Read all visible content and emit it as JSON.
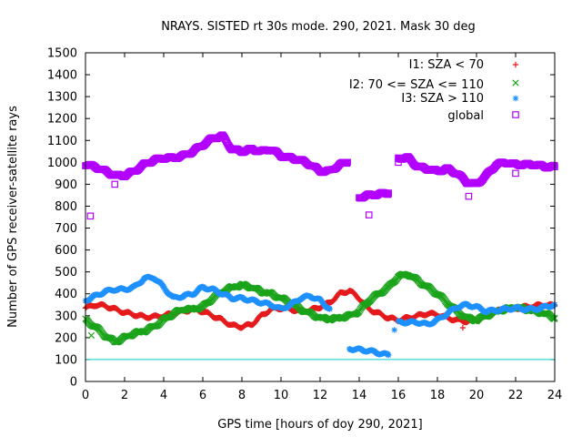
{
  "chart_data": {
    "type": "scatter",
    "title": "NRAYS. SISTED rt 30s mode. 290, 2021. Mask 30 deg",
    "xlabel": "GPS time [hours of doy 290, 2021]",
    "ylabel": "Number of GPS receiver-satellite rays",
    "xlim": [
      0,
      24
    ],
    "ylim": [
      0,
      1500
    ],
    "xticks": [
      0,
      2,
      4,
      6,
      8,
      10,
      12,
      14,
      16,
      18,
      20,
      22,
      24
    ],
    "yticks": [
      0,
      100,
      200,
      300,
      400,
      500,
      600,
      700,
      800,
      900,
      1000,
      1100,
      1200,
      1300,
      1400,
      1500
    ],
    "legend_position": "top-right",
    "reference_line": {
      "y": 100,
      "color": "#00ced1"
    },
    "series": [
      {
        "name": "I1: SZA < 70",
        "marker": "plus",
        "color": "#e41a1c",
        "x": [
          0,
          0.5,
          1,
          1.5,
          2,
          2.5,
          3,
          3.5,
          4,
          4.5,
          5,
          5.5,
          6,
          6.5,
          7,
          7.5,
          8,
          8.5,
          9,
          9.5,
          10,
          10.5,
          11,
          11.5,
          12,
          12.5,
          13,
          13.5,
          14,
          14.5,
          15,
          15.5,
          16,
          16.5,
          17,
          17.5,
          18,
          18.5,
          19,
          19.5,
          20,
          20.5,
          21,
          21.5,
          22,
          22.5,
          23,
          23.5,
          24
        ],
        "y": [
          335,
          350,
          345,
          330,
          315,
          305,
          295,
          295,
          300,
          310,
          320,
          330,
          320,
          300,
          280,
          255,
          250,
          260,
          300,
          330,
          335,
          330,
          320,
          325,
          340,
          360,
          400,
          415,
          380,
          330,
          310,
          290,
          280,
          290,
          300,
          310,
          305,
          290,
          280,
          275,
          280,
          300,
          320,
          330,
          335,
          340,
          345,
          350,
          345
        ]
      },
      {
        "name": "I2: 70 <= SZA <= 110",
        "marker": "cross",
        "color": "#1aa31a",
        "x": [
          0,
          0.5,
          1,
          1.5,
          2,
          2.5,
          3,
          3.5,
          4,
          4.5,
          5,
          5.5,
          6,
          6.5,
          7,
          7.5,
          8,
          8.5,
          9,
          9.5,
          10,
          10.5,
          11,
          11.5,
          12,
          12.5,
          13,
          13.5,
          14,
          14.5,
          15,
          15.5,
          16,
          16.5,
          17,
          17.5,
          18,
          18.5,
          19,
          19.5,
          20,
          20.5,
          21,
          21.5,
          22,
          22.5,
          23,
          23.5,
          24
        ],
        "y": [
          280,
          250,
          210,
          180,
          200,
          220,
          230,
          250,
          280,
          310,
          330,
          330,
          340,
          380,
          410,
          430,
          440,
          430,
          410,
          400,
          380,
          360,
          330,
          310,
          290,
          285,
          290,
          300,
          320,
          370,
          400,
          430,
          480,
          490,
          460,
          430,
          400,
          360,
          320,
          290,
          280,
          300,
          320,
          330,
          340,
          330,
          320,
          310,
          290
        ]
      },
      {
        "name": "I3: SZA > 110",
        "marker": "star",
        "color": "#1e90ff",
        "x": [
          0,
          0.5,
          1,
          1.5,
          2,
          2.5,
          3,
          3.5,
          4,
          4.5,
          5,
          5.5,
          6,
          6.5,
          7,
          7.5,
          8,
          8.5,
          9,
          9.5,
          10,
          10.5,
          11,
          11.5,
          12,
          12.5,
          13,
          13.5,
          14,
          14.5,
          15,
          15.5,
          15.7,
          16,
          16.5,
          17,
          17.5,
          18,
          18.5,
          19,
          19.5,
          20,
          20.5,
          21,
          21.5,
          22,
          22.5,
          23,
          23.5,
          24
        ],
        "y": [
          370,
          390,
          410,
          420,
          420,
          430,
          470,
          475,
          430,
          380,
          390,
          400,
          430,
          420,
          400,
          380,
          380,
          370,
          360,
          350,
          330,
          350,
          380,
          390,
          370,
          330,
          null,
          150,
          145,
          140,
          130,
          120,
          null,
          270,
          270,
          270,
          260,
          280,
          310,
          340,
          350,
          340,
          320,
          325,
          330,
          335,
          330,
          330,
          340,
          350
        ]
      },
      {
        "name": "global",
        "marker": "square",
        "color": "#b300ff",
        "x": [
          0,
          0.5,
          1,
          1.5,
          2,
          2.5,
          3,
          3.5,
          4,
          4.5,
          5,
          5.5,
          6,
          6.5,
          7,
          7.5,
          8,
          8.5,
          9,
          9.5,
          10,
          10.5,
          11,
          11.5,
          12,
          12.5,
          13,
          13.4,
          13.5,
          14,
          14.5,
          15,
          15.5,
          15.7,
          16,
          16.5,
          17,
          17.5,
          18,
          18.5,
          19,
          19.5,
          20,
          20.5,
          21,
          21.5,
          22,
          22.5,
          23,
          23.5,
          24
        ],
        "y": [
          990,
          980,
          960,
          940,
          940,
          960,
          990,
          1010,
          1020,
          1020,
          1030,
          1050,
          1080,
          1110,
          1120,
          1060,
          1050,
          1060,
          1050,
          1060,
          1030,
          1020,
          1010,
          990,
          960,
          960,
          990,
          1000,
          null,
          840,
          850,
          855,
          860,
          null,
          1020,
          1020,
          980,
          970,
          960,
          970,
          950,
          910,
          900,
          940,
          990,
          1000,
          990,
          990,
          990,
          980,
          980
        ]
      }
    ],
    "outliers": [
      {
        "series": "global",
        "x": 0.25,
        "y": 755
      },
      {
        "series": "global",
        "x": 14.5,
        "y": 760
      },
      {
        "series": "global",
        "x": 1.5,
        "y": 900
      },
      {
        "series": "global",
        "x": 19.6,
        "y": 845
      },
      {
        "series": "global",
        "x": 16.0,
        "y": 1000
      },
      {
        "series": "global",
        "x": 22.0,
        "y": 950
      },
      {
        "series": "I1: SZA < 70",
        "x": 19.3,
        "y": 245
      },
      {
        "series": "I2: 70 <= SZA <= 110",
        "x": 0.3,
        "y": 210
      },
      {
        "series": "I3: SZA > 110",
        "x": 15.8,
        "y": 235
      }
    ]
  }
}
